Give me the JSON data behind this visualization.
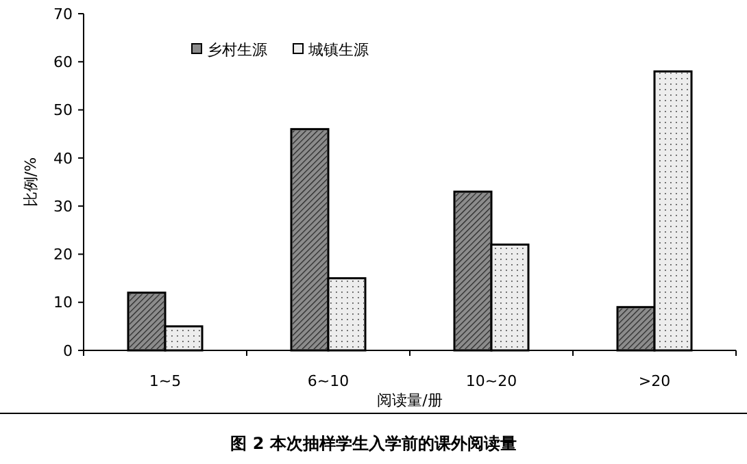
{
  "chart_data": {
    "type": "bar",
    "title": "图 2 本次抽样学生入学前的课外阅读量",
    "xlabel": "阅读量/册",
    "ylabel": "比例/%",
    "categories": [
      "1~5",
      "6~10",
      "10~20",
      ">20"
    ],
    "series": [
      {
        "name": "乡村生源",
        "color": "#8c8c8c",
        "values": [
          12,
          46,
          33,
          9
        ]
      },
      {
        "name": "城镇生源",
        "color": "#ededed",
        "values": [
          5,
          15,
          22,
          58
        ]
      }
    ],
    "ylim": [
      0,
      70
    ],
    "yticks": [
      0,
      10,
      20,
      30,
      40,
      50,
      60,
      70
    ],
    "grid": false,
    "legend": "top left"
  }
}
